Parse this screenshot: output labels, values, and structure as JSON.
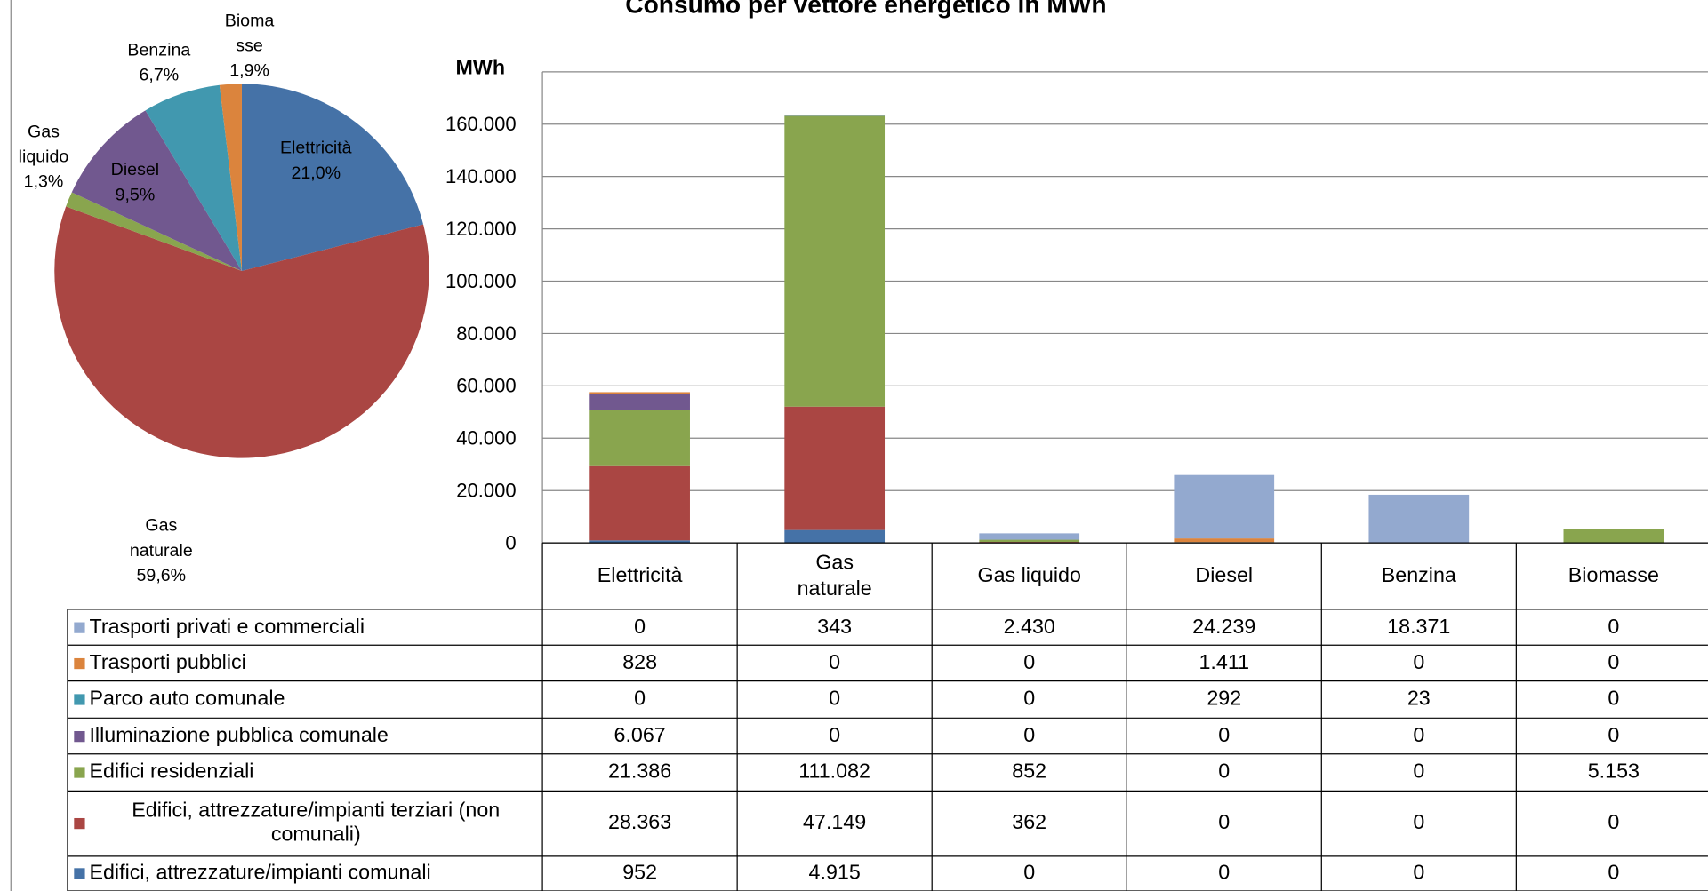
{
  "chart_data": [
    {
      "type": "pie",
      "categories": [
        "Elettricità",
        "Gas naturale",
        "Gas liquido",
        "Diesel",
        "Benzina",
        "Biomasse"
      ],
      "values": [
        21.0,
        59.6,
        1.3,
        9.5,
        6.7,
        1.9
      ],
      "value_labels": [
        "21,0%",
        "59,6%",
        "1,3%",
        "9,5%",
        "6,7%",
        "1,9%"
      ],
      "colors": [
        "#4572a7",
        "#aa4643",
        "#89a54e",
        "#71588f",
        "#4198af",
        "#db843d"
      ]
    },
    {
      "type": "stacked_bar",
      "title": "Consumo per vettore energetico in MWh",
      "y_label": "MWh",
      "categories": [
        "Elettricità",
        "Gas naturale",
        "Gas liquido",
        "Diesel",
        "Benzina",
        "Biomasse"
      ],
      "ylim": [
        0,
        180000
      ],
      "yticks": [
        0,
        {
          "value": 20000,
          "label": "20.000"
        },
        {
          "value": 40000,
          "label": "40.000"
        },
        {
          "value": 60000,
          "label": "60.000"
        },
        {
          "value": 80000,
          "label": "80.000"
        },
        {
          "value": 100000,
          "label": "100.000"
        },
        {
          "value": 120000,
          "label": "120.000"
        },
        {
          "value": 140000,
          "label": "140.000"
        },
        {
          "value": 160000,
          "label": "160.000"
        }
      ],
      "grid": true,
      "series": [
        {
          "name": "Trasporti privati e commerciali",
          "color": "#93a9cf",
          "values": [
            0,
            343,
            2430,
            24239,
            18371,
            0
          ],
          "value_labels": [
            "0",
            "343",
            "2.430",
            "24.239",
            "18.371",
            "0"
          ]
        },
        {
          "name": "Trasporti pubblici",
          "color": "#db843d",
          "values": [
            828,
            0,
            0,
            1411,
            0,
            0
          ],
          "value_labels": [
            "828",
            "0",
            "0",
            "1.411",
            "0",
            "0"
          ]
        },
        {
          "name": "Parco auto comunale",
          "color": "#4198af",
          "values": [
            0,
            0,
            0,
            292,
            23,
            0
          ],
          "value_labels": [
            "0",
            "0",
            "0",
            "292",
            "23",
            "0"
          ]
        },
        {
          "name": "Illuminazione pubblica comunale",
          "color": "#71588f",
          "values": [
            6067,
            0,
            0,
            0,
            0,
            0
          ],
          "value_labels": [
            "6.067",
            "0",
            "0",
            "0",
            "0",
            "0"
          ]
        },
        {
          "name": "Edifici residenziali",
          "color": "#89a54e",
          "values": [
            21386,
            111082,
            852,
            0,
            0,
            5153
          ],
          "value_labels": [
            "21.386",
            "111.082",
            "852",
            "0",
            "0",
            "5.153"
          ]
        },
        {
          "name": "Edifici, attrezzature/impianti terziari (non comunali)",
          "color": "#aa4643",
          "values": [
            28363,
            47149,
            362,
            0,
            0,
            0
          ],
          "value_labels": [
            "28.363",
            "47.149",
            "362",
            "0",
            "0",
            "0"
          ]
        },
        {
          "name": "Edifici, attrezzature/impianti comunali",
          "color": "#4572a7",
          "values": [
            952,
            4915,
            0,
            0,
            0,
            0
          ],
          "value_labels": [
            "952",
            "4.915",
            "0",
            "0",
            "0",
            "0"
          ]
        }
      ]
    }
  ]
}
